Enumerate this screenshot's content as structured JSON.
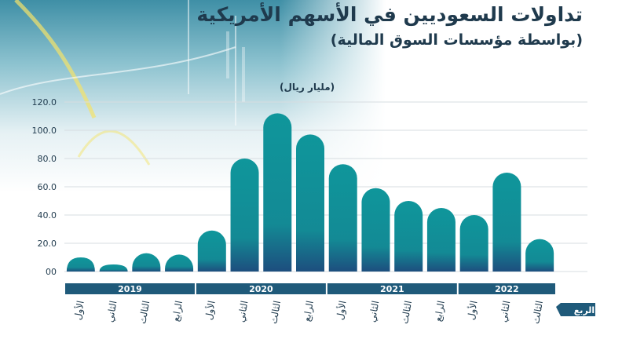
{
  "header": {
    "title": "تداولات السعوديين في الأسهم الأمريكية",
    "subtitle": "(بواسطة مؤسسات السوق المالية)",
    "unit": "(مليار ريال)"
  },
  "colors": {
    "bar_top": "#0f969b",
    "bar_bottom": "#1d4e7e",
    "year_band": "#1f5a7a",
    "text": "#1f3a4d"
  },
  "chart_data": {
    "type": "bar",
    "title": "تداولات السعوديين في الأسهم الأمريكية",
    "subtitle": "(بواسطة مؤسسات السوق المالية)",
    "ylabel": "(مليار ريال)",
    "xlabel": "الربع",
    "ylim": [
      0,
      120
    ],
    "yticks": [
      "00",
      "20.0",
      "40.0",
      "60.0",
      "80.0",
      "100.0",
      "120.0"
    ],
    "grid": true,
    "categories": [
      "الأول",
      "الثاني",
      "الثالث",
      "الرابع",
      "الأول",
      "الثاني",
      "الثالث",
      "الرابع",
      "الأول",
      "الثاني",
      "الثالث",
      "الرابع",
      "الأول",
      "الثاني",
      "الثالث"
    ],
    "values": [
      10,
      5,
      13,
      12,
      29,
      80,
      112,
      97,
      76,
      59,
      50,
      45,
      40,
      70,
      23
    ],
    "years": [
      {
        "label": "2019",
        "count": 4
      },
      {
        "label": "2020",
        "count": 4
      },
      {
        "label": "2021",
        "count": 4
      },
      {
        "label": "2022",
        "count": 3
      }
    ]
  }
}
